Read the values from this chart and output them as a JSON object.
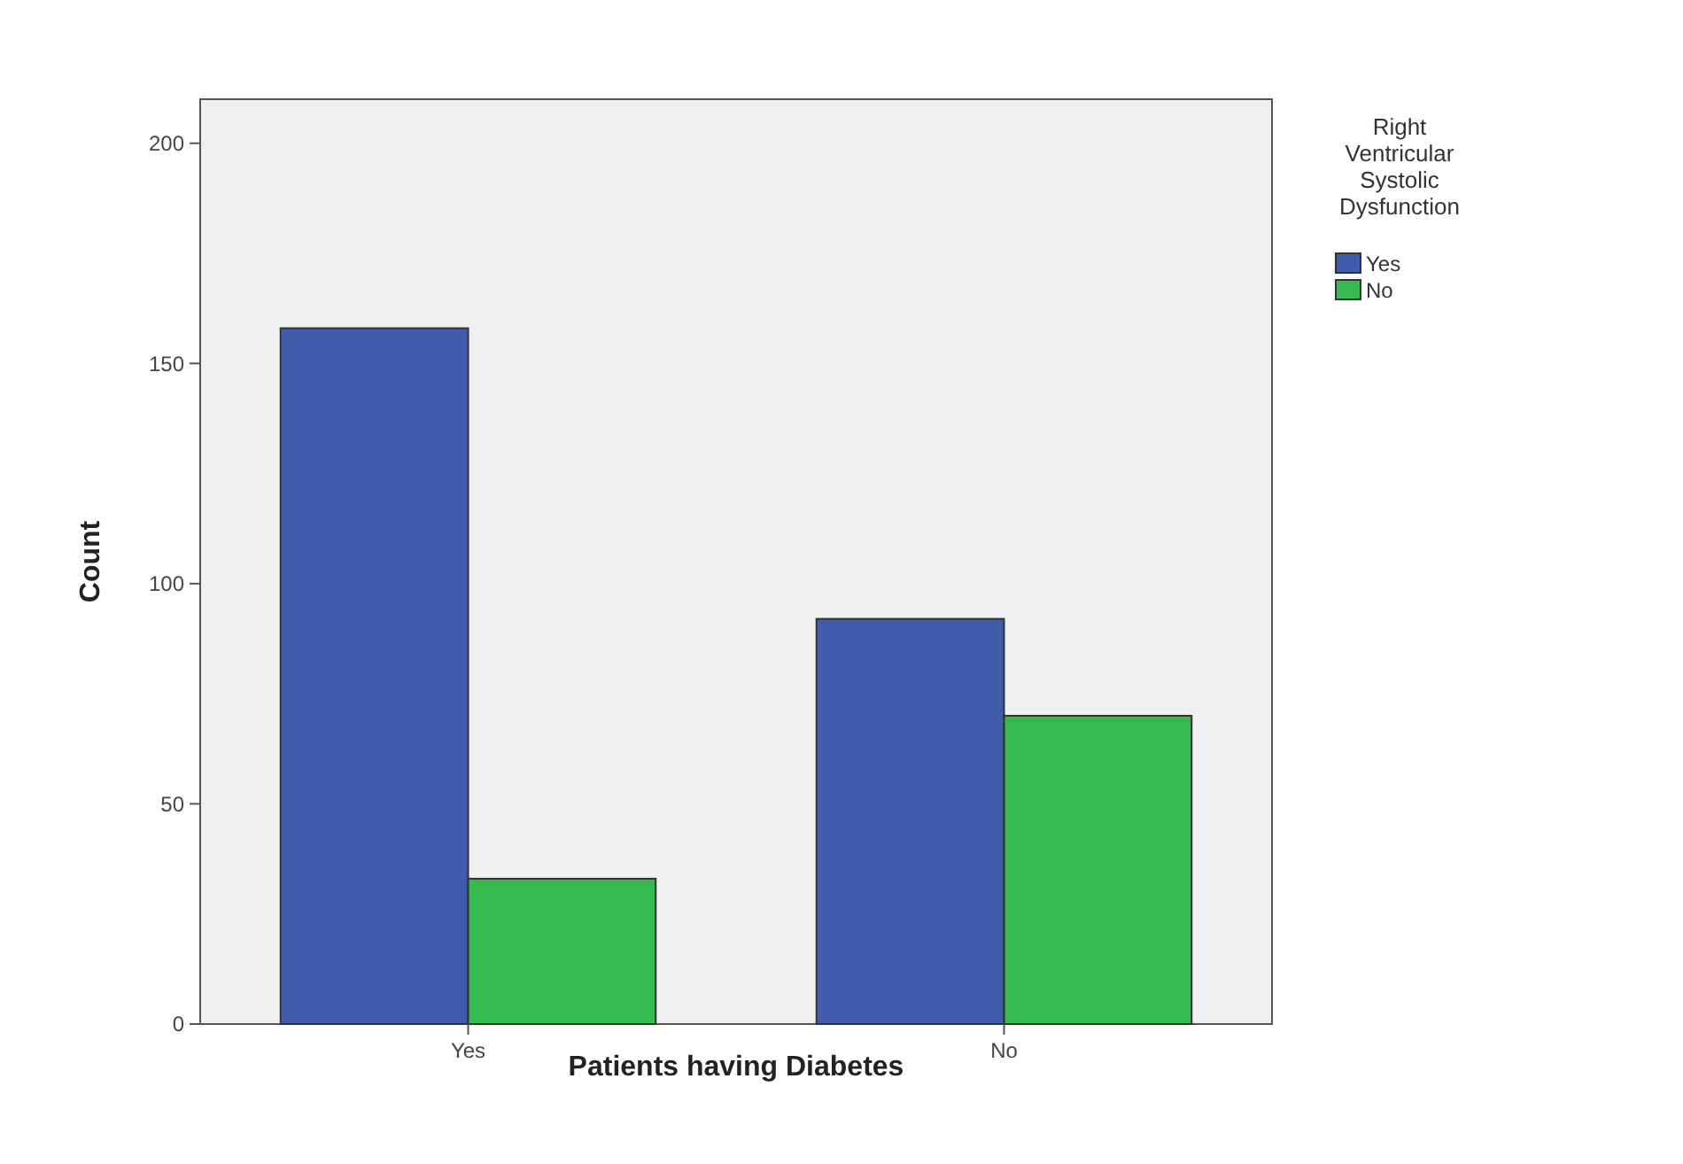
{
  "chart_data": {
    "type": "bar",
    "xlabel": "Patients having Diabetes",
    "ylabel": "Count",
    "legend_title": "Right Ventricular Systolic Dysfunction",
    "categories": [
      "Yes",
      "No"
    ],
    "series": [
      {
        "name": "Yes",
        "color": "#415caa",
        "values": [
          158,
          92
        ]
      },
      {
        "name": "No",
        "color": "#36b94e",
        "values": [
          33,
          70
        ]
      }
    ],
    "ylim": [
      0,
      210
    ],
    "yticks": [
      0,
      50,
      100,
      150,
      200
    ],
    "legend": "right",
    "grid": false
  }
}
